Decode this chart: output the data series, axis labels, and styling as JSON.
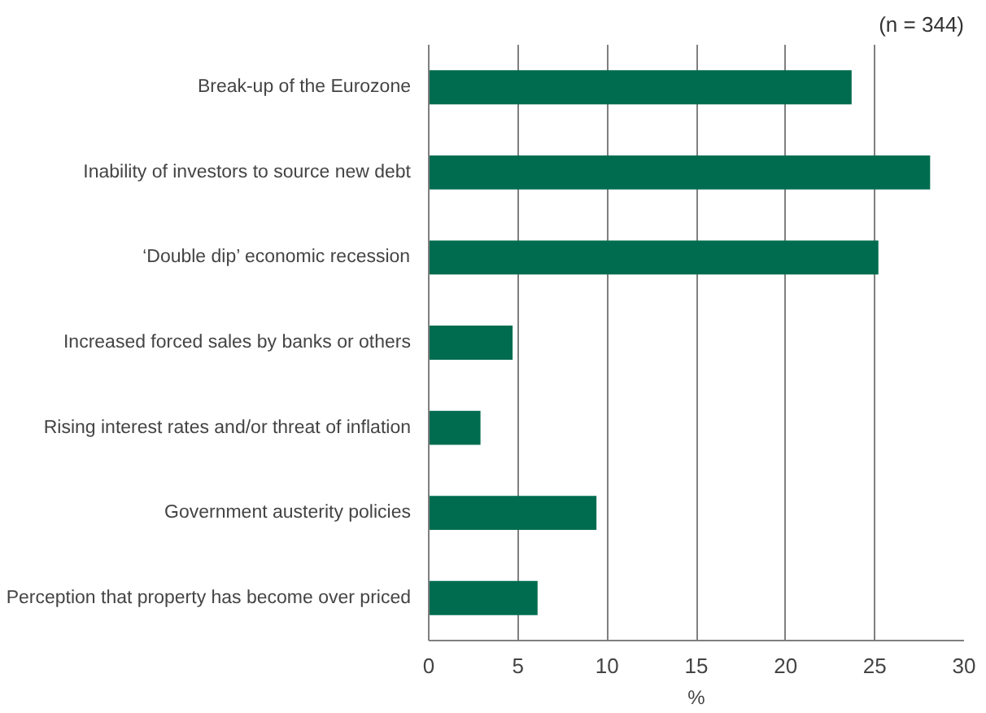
{
  "chart_data": {
    "type": "bar",
    "orientation": "horizontal",
    "categories": [
      "Break-up of the Eurozone",
      "Inability of investors to source new debt",
      "‘Double dip’ economic recession",
      "Increased forced sales by banks or others",
      "Rising interest rates and/or threat of inflation",
      "Government austerity policies",
      "Perception that property has become over priced"
    ],
    "values": [
      23.7,
      28.1,
      25.2,
      4.7,
      2.9,
      9.4,
      6.1
    ],
    "color": "#006c4f",
    "xlim": [
      0,
      30
    ],
    "xticks": [
      0,
      5,
      10,
      15,
      20,
      25,
      30
    ],
    "xlabel": "%",
    "annotations": [
      "(n = 344)"
    ],
    "grid": "x"
  }
}
